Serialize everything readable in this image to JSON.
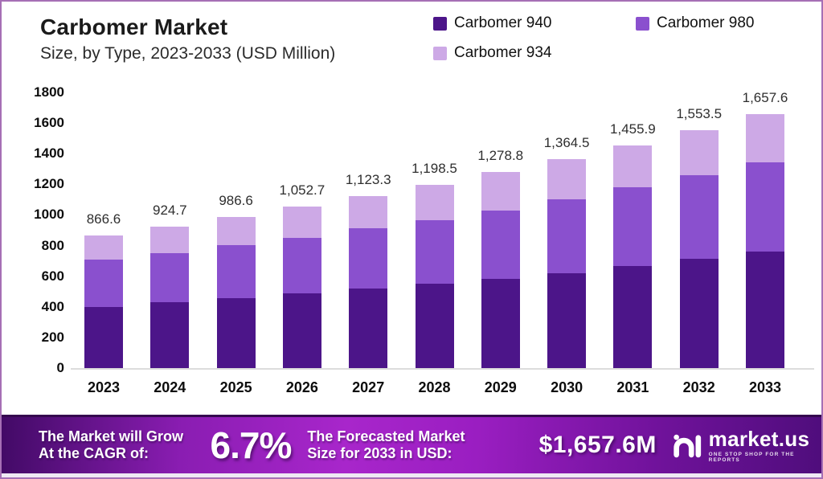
{
  "header": {
    "title": "Carbomer Market",
    "subtitle": "Size, by Type, 2023-2033 (USD Million)"
  },
  "legend": [
    {
      "label": "Carbomer 940",
      "color": "#4C1589"
    },
    {
      "label": "Carbomer 980",
      "color": "#8A50CE"
    },
    {
      "label": "Carbomer 934",
      "color": "#CDA9E6"
    }
  ],
  "chart_data": {
    "type": "bar",
    "stacked": true,
    "title": "Carbomer Market Size, by Type, 2023-2033 (USD Million)",
    "categories": [
      "2023",
      "2024",
      "2025",
      "2026",
      "2027",
      "2028",
      "2029",
      "2030",
      "2031",
      "2032",
      "2033"
    ],
    "series": [
      {
        "name": "Carbomer 940",
        "color": "#4C1589",
        "values": [
          400,
          430,
          456,
          488,
          518,
          552,
          584,
          621,
          668,
          713,
          762
        ]
      },
      {
        "name": "Carbomer 980",
        "color": "#8A50CE",
        "values": [
          308,
          322,
          345,
          364,
          394,
          412,
          447,
          480,
          515,
          545,
          580
        ]
      },
      {
        "name": "Carbomer 934",
        "color": "#CDA9E6",
        "values": [
          158.6,
          172.7,
          185.6,
          200.7,
          211.3,
          234.5,
          247.8,
          263.5,
          272.9,
          295.5,
          315.6
        ]
      }
    ],
    "totals": [
      866.6,
      924.7,
      986.6,
      1052.7,
      1123.3,
      1198.5,
      1278.8,
      1364.5,
      1455.9,
      1553.5,
      1657.6
    ],
    "total_labels": [
      "866.6",
      "924.7",
      "986.6",
      "1,052.7",
      "1,123.3",
      "1,198.5",
      "1,278.8",
      "1,364.5",
      "1,455.9",
      "1,553.5",
      "1,657.6"
    ],
    "xlabel": "",
    "ylabel": "",
    "ylim": [
      0,
      1800
    ],
    "ytick_step": 200,
    "grid": false,
    "legend_position": "top-right"
  },
  "banner": {
    "cagr_line1": "The Market will Grow",
    "cagr_line2": "At the CAGR of:",
    "cagr_value": "6.7%",
    "forecast_line1": "The Forecasted Market",
    "forecast_line2": "Size for 2033 in USD:",
    "forecast_value": "$1,657.6M",
    "logo_text": "market.us",
    "logo_tagline": "ONE STOP SHOP FOR THE REPORTS"
  },
  "colors": {
    "frame_border": "#A66FB5",
    "axis_line": "#dcdcdc",
    "banner_gradient_start": "#420a66",
    "banner_gradient_mid": "#a826cb",
    "banner_gradient_end": "#4f0d7c"
  }
}
